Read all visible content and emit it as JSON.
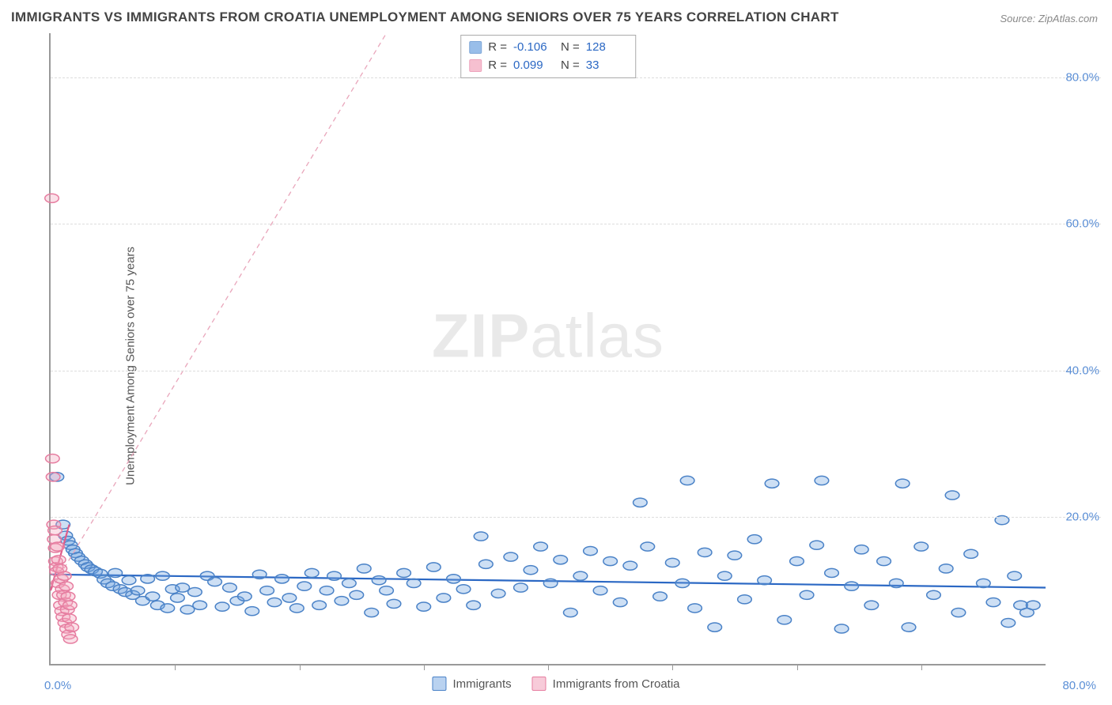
{
  "title": "IMMIGRANTS VS IMMIGRANTS FROM CROATIA UNEMPLOYMENT AMONG SENIORS OVER 75 YEARS CORRELATION CHART",
  "source": "Source: ZipAtlas.com",
  "watermark_zip": "ZIP",
  "watermark_atlas": "atlas",
  "y_axis_label": "Unemployment Among Seniors over 75 years",
  "chart": {
    "type": "scatter",
    "xlim": [
      0,
      80
    ],
    "ylim": [
      0,
      86
    ],
    "x_ticks": [
      10,
      20,
      30,
      40,
      50,
      60,
      70
    ],
    "y_gridlines": [
      20,
      40,
      60,
      80
    ],
    "y_tick_labels": [
      "20.0%",
      "40.0%",
      "60.0%",
      "80.0%"
    ],
    "x_start_label": "0.0%",
    "x_end_label": "80.0%",
    "background_color": "#ffffff",
    "grid_color": "#dddddd",
    "axis_color": "#999999",
    "tick_label_color": "#5b8fd6",
    "marker_radius": 7,
    "marker_fill_opacity": 0.35,
    "marker_stroke_width": 1.5,
    "series": [
      {
        "name": "Immigrants",
        "color": "#6fa3e0",
        "stroke": "#4a82c7",
        "r_value": "-0.106",
        "n_value": "128",
        "trend": {
          "x1": 0,
          "y1": 12.2,
          "x2": 80,
          "y2": 10.4,
          "stroke": "#2b68c4",
          "width": 2.2,
          "dash": "none"
        },
        "points": [
          [
            0.5,
            25.5
          ],
          [
            1.0,
            19.0
          ],
          [
            1.2,
            17.5
          ],
          [
            1.4,
            16.8
          ],
          [
            1.6,
            16.2
          ],
          [
            1.8,
            15.6
          ],
          [
            2.0,
            15.1
          ],
          [
            2.2,
            14.6
          ],
          [
            2.5,
            14.1
          ],
          [
            2.8,
            13.6
          ],
          [
            3.0,
            13.2
          ],
          [
            3.3,
            12.9
          ],
          [
            3.6,
            12.6
          ],
          [
            4.0,
            12.3
          ],
          [
            4.3,
            11.5
          ],
          [
            4.6,
            11.0
          ],
          [
            5.0,
            10.6
          ],
          [
            5.2,
            12.4
          ],
          [
            5.6,
            10.2
          ],
          [
            6.0,
            9.8
          ],
          [
            6.3,
            11.4
          ],
          [
            6.6,
            9.4
          ],
          [
            7.0,
            10.0
          ],
          [
            7.4,
            8.6
          ],
          [
            7.8,
            11.6
          ],
          [
            8.2,
            9.2
          ],
          [
            8.6,
            8.0
          ],
          [
            9.0,
            12.0
          ],
          [
            9.4,
            7.6
          ],
          [
            9.8,
            10.2
          ],
          [
            10.2,
            9.0
          ],
          [
            10.6,
            10.4
          ],
          [
            11.0,
            7.4
          ],
          [
            11.6,
            9.8
          ],
          [
            12.0,
            8.0
          ],
          [
            12.6,
            12.0
          ],
          [
            13.2,
            11.2
          ],
          [
            13.8,
            7.8
          ],
          [
            14.4,
            10.4
          ],
          [
            15.0,
            8.6
          ],
          [
            15.6,
            9.2
          ],
          [
            16.2,
            7.2
          ],
          [
            16.8,
            12.2
          ],
          [
            17.4,
            10.0
          ],
          [
            18.0,
            8.4
          ],
          [
            18.6,
            11.6
          ],
          [
            19.2,
            9.0
          ],
          [
            19.8,
            7.6
          ],
          [
            20.4,
            10.6
          ],
          [
            21.0,
            12.4
          ],
          [
            21.6,
            8.0
          ],
          [
            22.2,
            10.0
          ],
          [
            22.8,
            12.0
          ],
          [
            23.4,
            8.6
          ],
          [
            24.0,
            11.0
          ],
          [
            24.6,
            9.4
          ],
          [
            25.2,
            13.0
          ],
          [
            25.8,
            7.0
          ],
          [
            26.4,
            11.4
          ],
          [
            27.0,
            10.0
          ],
          [
            27.6,
            8.2
          ],
          [
            28.4,
            12.4
          ],
          [
            29.2,
            11.0
          ],
          [
            30.0,
            7.8
          ],
          [
            30.8,
            13.2
          ],
          [
            31.6,
            9.0
          ],
          [
            32.4,
            11.6
          ],
          [
            33.2,
            10.2
          ],
          [
            34.0,
            8.0
          ],
          [
            34.6,
            17.4
          ],
          [
            35.0,
            13.6
          ],
          [
            36.0,
            9.6
          ],
          [
            37.0,
            14.6
          ],
          [
            37.8,
            10.4
          ],
          [
            38.6,
            12.8
          ],
          [
            39.4,
            16.0
          ],
          [
            40.2,
            11.0
          ],
          [
            41.0,
            14.2
          ],
          [
            41.8,
            7.0
          ],
          [
            42.6,
            12.0
          ],
          [
            43.4,
            15.4
          ],
          [
            44.2,
            10.0
          ],
          [
            45.0,
            14.0
          ],
          [
            45.8,
            8.4
          ],
          [
            46.6,
            13.4
          ],
          [
            47.4,
            22.0
          ],
          [
            48.0,
            16.0
          ],
          [
            49.0,
            9.2
          ],
          [
            50.0,
            13.8
          ],
          [
            50.8,
            11.0
          ],
          [
            51.2,
            25.0
          ],
          [
            51.8,
            7.6
          ],
          [
            52.6,
            15.2
          ],
          [
            53.4,
            5.0
          ],
          [
            54.2,
            12.0
          ],
          [
            55.0,
            14.8
          ],
          [
            55.8,
            8.8
          ],
          [
            56.6,
            17.0
          ],
          [
            57.4,
            11.4
          ],
          [
            58.0,
            24.6
          ],
          [
            59.0,
            6.0
          ],
          [
            60.0,
            14.0
          ],
          [
            60.8,
            9.4
          ],
          [
            61.6,
            16.2
          ],
          [
            62.0,
            25.0
          ],
          [
            62.8,
            12.4
          ],
          [
            63.6,
            4.8
          ],
          [
            64.4,
            10.6
          ],
          [
            65.2,
            15.6
          ],
          [
            66.0,
            8.0
          ],
          [
            67.0,
            14.0
          ],
          [
            68.0,
            11.0
          ],
          [
            68.5,
            24.6
          ],
          [
            69.0,
            5.0
          ],
          [
            70.0,
            16.0
          ],
          [
            71.0,
            9.4
          ],
          [
            72.0,
            13.0
          ],
          [
            72.5,
            23.0
          ],
          [
            73.0,
            7.0
          ],
          [
            74.0,
            15.0
          ],
          [
            75.0,
            11.0
          ],
          [
            75.8,
            8.4
          ],
          [
            76.5,
            19.6
          ],
          [
            77.0,
            5.6
          ],
          [
            77.5,
            12.0
          ],
          [
            78.0,
            8.0
          ],
          [
            78.5,
            7.0
          ],
          [
            79.0,
            8.0
          ]
        ]
      },
      {
        "name": "Immigrants from Croatia",
        "color": "#f3a6bd",
        "stroke": "#e67da0",
        "r_value": "0.099",
        "n_value": "33",
        "trend": {
          "x1": 0,
          "y1": 10.0,
          "x2": 27,
          "y2": 86,
          "stroke": "#e9a6bb",
          "width": 1.3,
          "dash": "6,5"
        },
        "short_trend": {
          "x1": 0,
          "y1": 10.0,
          "x2": 1.5,
          "y2": 19.0,
          "stroke": "#e05c8a",
          "width": 2.2
        },
        "points": [
          [
            0.1,
            63.5
          ],
          [
            0.15,
            28.0
          ],
          [
            0.2,
            25.5
          ],
          [
            0.25,
            19.0
          ],
          [
            0.3,
            17.0
          ],
          [
            0.35,
            18.2
          ],
          [
            0.38,
            15.8
          ],
          [
            0.4,
            14.0
          ],
          [
            0.45,
            13.2
          ],
          [
            0.5,
            12.6
          ],
          [
            0.55,
            16.0
          ],
          [
            0.6,
            11.0
          ],
          [
            0.65,
            14.2
          ],
          [
            0.7,
            9.4
          ],
          [
            0.75,
            13.0
          ],
          [
            0.8,
            8.0
          ],
          [
            0.85,
            11.6
          ],
          [
            0.9,
            7.2
          ],
          [
            0.95,
            10.2
          ],
          [
            1.0,
            6.4
          ],
          [
            1.05,
            9.4
          ],
          [
            1.1,
            12.0
          ],
          [
            1.15,
            5.6
          ],
          [
            1.2,
            8.4
          ],
          [
            1.25,
            10.6
          ],
          [
            1.3,
            4.8
          ],
          [
            1.35,
            7.4
          ],
          [
            1.4,
            9.2
          ],
          [
            1.45,
            4.0
          ],
          [
            1.5,
            6.2
          ],
          [
            1.55,
            8.0
          ],
          [
            1.6,
            3.4
          ],
          [
            1.7,
            5.0
          ]
        ]
      }
    ]
  },
  "bottom_legend": [
    {
      "label": "Immigrants",
      "fill": "#b9d2f0",
      "border": "#4a82c7"
    },
    {
      "label": "Immigrants from Croatia",
      "fill": "#f7cbd9",
      "border": "#e67da0"
    }
  ],
  "stats_box": {
    "r_label": "R =",
    "n_label": "N ="
  }
}
